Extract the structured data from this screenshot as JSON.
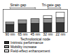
{
  "chart_data": {
    "type": "bar",
    "stacked": true,
    "xlabel": "Technological node",
    "categories": [
      "90 nm",
      "65 nm",
      "45 nm",
      "32 nm",
      "22 nm"
    ],
    "series": [
      {
        "name": "Intrinsic performance",
        "color": "#333333",
        "values": [
          1.0,
          1.1,
          1.15,
          1.2,
          1.25
        ]
      },
      {
        "name": "Mobility increase",
        "color": "#9a9a9a",
        "values": [
          0.3,
          0.5,
          0.6,
          0.6,
          0.65
        ]
      },
      {
        "name": "Field-effect enhancement",
        "color": "#ffffff",
        "values": [
          0,
          0,
          0,
          0.35,
          0.7
        ]
      }
    ],
    "ylim": [
      0,
      3
    ],
    "yticks": [],
    "tick_labels": "x",
    "legend": "bottom",
    "annotations": [
      {
        "text": "Strain gap",
        "from": "90 nm",
        "to": "45 nm"
      },
      {
        "text": "Tri-gate gap",
        "from": "32 nm",
        "to": "22 nm"
      }
    ]
  }
}
